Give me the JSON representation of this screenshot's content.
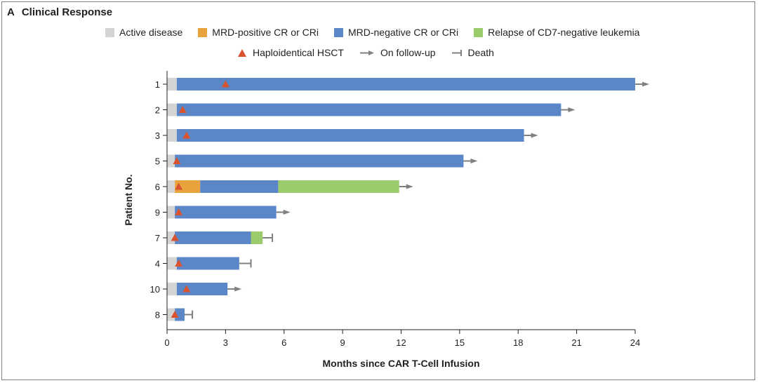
{
  "panel": {
    "letter": "A",
    "title": "Clinical Response"
  },
  "legend": {
    "row1": [
      {
        "label": "Active disease",
        "color": "#d4d4d4",
        "kind": "swatch"
      },
      {
        "label": "MRD-positive CR or CRi",
        "color": "#e8a33c",
        "kind": "swatch"
      },
      {
        "label": "MRD-negative CR or CRi",
        "color": "#5b86c8",
        "kind": "swatch"
      },
      {
        "label": "Relapse of CD7-negative leukemia",
        "color": "#9ccb6b",
        "kind": "swatch"
      }
    ],
    "row2": [
      {
        "label": "Haploidentical HSCT",
        "color": "#d9532f",
        "kind": "triangle-icon"
      },
      {
        "label": "On follow-up",
        "color": "#808080",
        "kind": "arrow-icon"
      },
      {
        "label": "Death",
        "color": "#808080",
        "kind": "death-bar-icon"
      }
    ]
  },
  "chart_data": {
    "type": "bar",
    "orientation": "horizontal",
    "title": "",
    "xlabel": "Months since CAR T-Cell Infusion",
    "ylabel": "Patient No.",
    "xlim": [
      0,
      24
    ],
    "xticks": [
      0,
      3,
      6,
      9,
      12,
      15,
      18,
      21,
      24
    ],
    "grid": false,
    "colors": {
      "active": "#d4d4d4",
      "mrd_pos": "#e8a33c",
      "mrd_neg": "#5b86c8",
      "relapse": "#9ccb6b",
      "hsct": "#d9532f",
      "outcome": "#808080"
    },
    "patients": [
      {
        "id": "1",
        "segments": [
          {
            "state": "active",
            "start": 0,
            "end": 0.5
          },
          {
            "state": "mrd_neg",
            "start": 0.5,
            "end": 24.0
          }
        ],
        "hsct": 3.0,
        "outcome": "on_follow_up"
      },
      {
        "id": "2",
        "segments": [
          {
            "state": "active",
            "start": 0,
            "end": 0.5
          },
          {
            "state": "mrd_neg",
            "start": 0.5,
            "end": 20.2
          }
        ],
        "hsct": 0.8,
        "outcome": "on_follow_up"
      },
      {
        "id": "3",
        "segments": [
          {
            "state": "active",
            "start": 0,
            "end": 0.5
          },
          {
            "state": "mrd_neg",
            "start": 0.5,
            "end": 18.3
          }
        ],
        "hsct": 1.0,
        "outcome": "on_follow_up"
      },
      {
        "id": "5",
        "segments": [
          {
            "state": "active",
            "start": 0,
            "end": 0.4
          },
          {
            "state": "mrd_neg",
            "start": 0.4,
            "end": 15.2
          }
        ],
        "hsct": 0.5,
        "outcome": "on_follow_up"
      },
      {
        "id": "6",
        "segments": [
          {
            "state": "active",
            "start": 0,
            "end": 0.4
          },
          {
            "state": "mrd_pos",
            "start": 0.4,
            "end": 1.7
          },
          {
            "state": "mrd_neg",
            "start": 1.7,
            "end": 5.7
          },
          {
            "state": "relapse",
            "start": 5.7,
            "end": 11.9
          }
        ],
        "hsct": 0.6,
        "outcome": "on_follow_up"
      },
      {
        "id": "9",
        "segments": [
          {
            "state": "active",
            "start": 0,
            "end": 0.4
          },
          {
            "state": "mrd_neg",
            "start": 0.4,
            "end": 5.6
          }
        ],
        "hsct": 0.6,
        "outcome": "on_follow_up"
      },
      {
        "id": "7",
        "segments": [
          {
            "state": "active",
            "start": 0,
            "end": 0.4
          },
          {
            "state": "mrd_neg",
            "start": 0.4,
            "end": 4.3
          },
          {
            "state": "relapse",
            "start": 4.3,
            "end": 4.9
          }
        ],
        "hsct": 0.4,
        "outcome": "death",
        "outcome_end": 5.4
      },
      {
        "id": "4",
        "segments": [
          {
            "state": "active",
            "start": 0,
            "end": 0.5
          },
          {
            "state": "mrd_neg",
            "start": 0.5,
            "end": 3.7
          }
        ],
        "hsct": 0.6,
        "outcome": "death",
        "outcome_end": 4.3
      },
      {
        "id": "10",
        "segments": [
          {
            "state": "active",
            "start": 0,
            "end": 0.5
          },
          {
            "state": "mrd_neg",
            "start": 0.5,
            "end": 3.1
          }
        ],
        "hsct": 1.0,
        "outcome": "on_follow_up"
      },
      {
        "id": "8",
        "segments": [
          {
            "state": "active",
            "start": 0,
            "end": 0.4
          },
          {
            "state": "mrd_neg",
            "start": 0.4,
            "end": 0.9
          }
        ],
        "hsct": 0.4,
        "outcome": "death",
        "outcome_end": 1.3
      }
    ]
  }
}
